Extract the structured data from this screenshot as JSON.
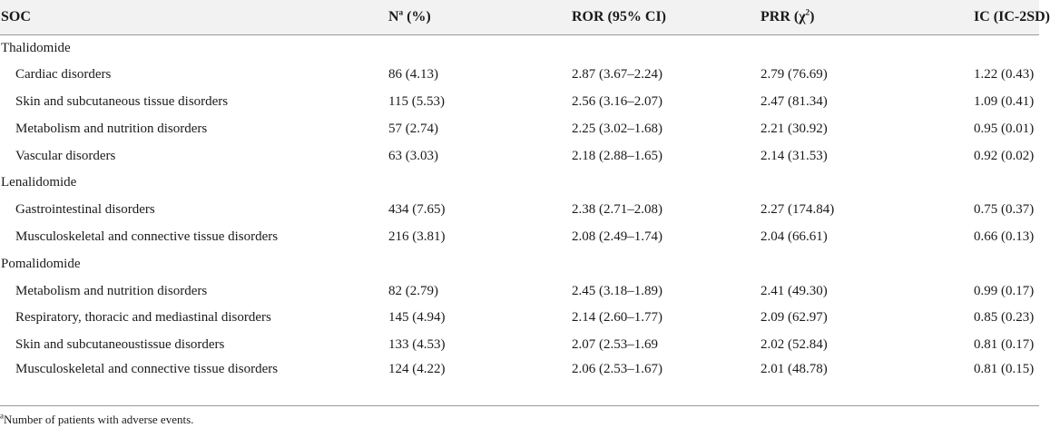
{
  "header": {
    "soc": "SOC",
    "n_base": "N",
    "n_sup": "a",
    "n_suffix": " (%)",
    "ror": "ROR (95% CI)",
    "prr_base": "PRR (χ",
    "prr_sup": "2",
    "prr_suffix": ")",
    "ic": "IC (IC-2SD)"
  },
  "groups": [
    {
      "name": "Thalidomide",
      "rows": [
        {
          "soc": "Cardiac disorders",
          "n": "86 (4.13)",
          "ror": "2.87 (3.67–2.24)",
          "prr": "2.79 (76.69)",
          "ic": "1.22 (0.43)"
        },
        {
          "soc": "Skin and subcutaneous tissue disorders",
          "n": "115 (5.53)",
          "ror": "2.56 (3.16–2.07)",
          "prr": "2.47 (81.34)",
          "ic": "1.09 (0.41)"
        },
        {
          "soc": "Metabolism and nutrition disorders",
          "n": "57 (2.74)",
          "ror": "2.25 (3.02–1.68)",
          "prr": "2.21 (30.92)",
          "ic": "0.95 (0.01)"
        },
        {
          "soc": "Vascular disorders",
          "n": "63 (3.03)",
          "ror": "2.18 (2.88–1.65)",
          "prr": "2.14 (31.53)",
          "ic": "0.92 (0.02)"
        }
      ]
    },
    {
      "name": "Lenalidomide",
      "rows": [
        {
          "soc": "Gastrointestinal disorders",
          "n": "434 (7.65)",
          "ror": "2.38 (2.71–2.08)",
          "prr": "2.27 (174.84)",
          "ic": "0.75 (0.37)"
        },
        {
          "soc": "Musculoskeletal and connective tissue disorders",
          "n": "216 (3.81)",
          "ror": "2.08 (2.49–1.74)",
          "prr": "2.04 (66.61)",
          "ic": "0.66 (0.13)"
        }
      ]
    },
    {
      "name": "Pomalidomide",
      "rows": [
        {
          "soc": "Metabolism and nutrition disorders",
          "n": "82 (2.79)",
          "ror": "2.45 (3.18–1.89)",
          "prr": "2.41 (49.30)",
          "ic": "0.99 (0.17)"
        },
        {
          "soc": "Respiratory, thoracic and mediastinal disorders",
          "n": "145 (4.94)",
          "ror": "2.14 (2.60–1.77)",
          "prr": "2.09 (62.97)",
          "ic": "0.85 (0.23)"
        },
        {
          "soc": "Skin and subcutaneoustissue disorders",
          "n": "133 (4.53)",
          "ror": "2.07 (2.53–1.69",
          "prr": "2.02 (52.84)",
          "ic": "0.81 (0.17)"
        },
        {
          "soc": "Musculoskeletal and connective tissue disorders",
          "n": "124 (4.22)",
          "ror": "2.06 (2.53–1.67)",
          "prr": "2.01 (48.78)",
          "ic": "0.81 (0.15)"
        }
      ]
    }
  ],
  "footnote": {
    "sup": "a",
    "text": "Number of patients with adverse events."
  }
}
